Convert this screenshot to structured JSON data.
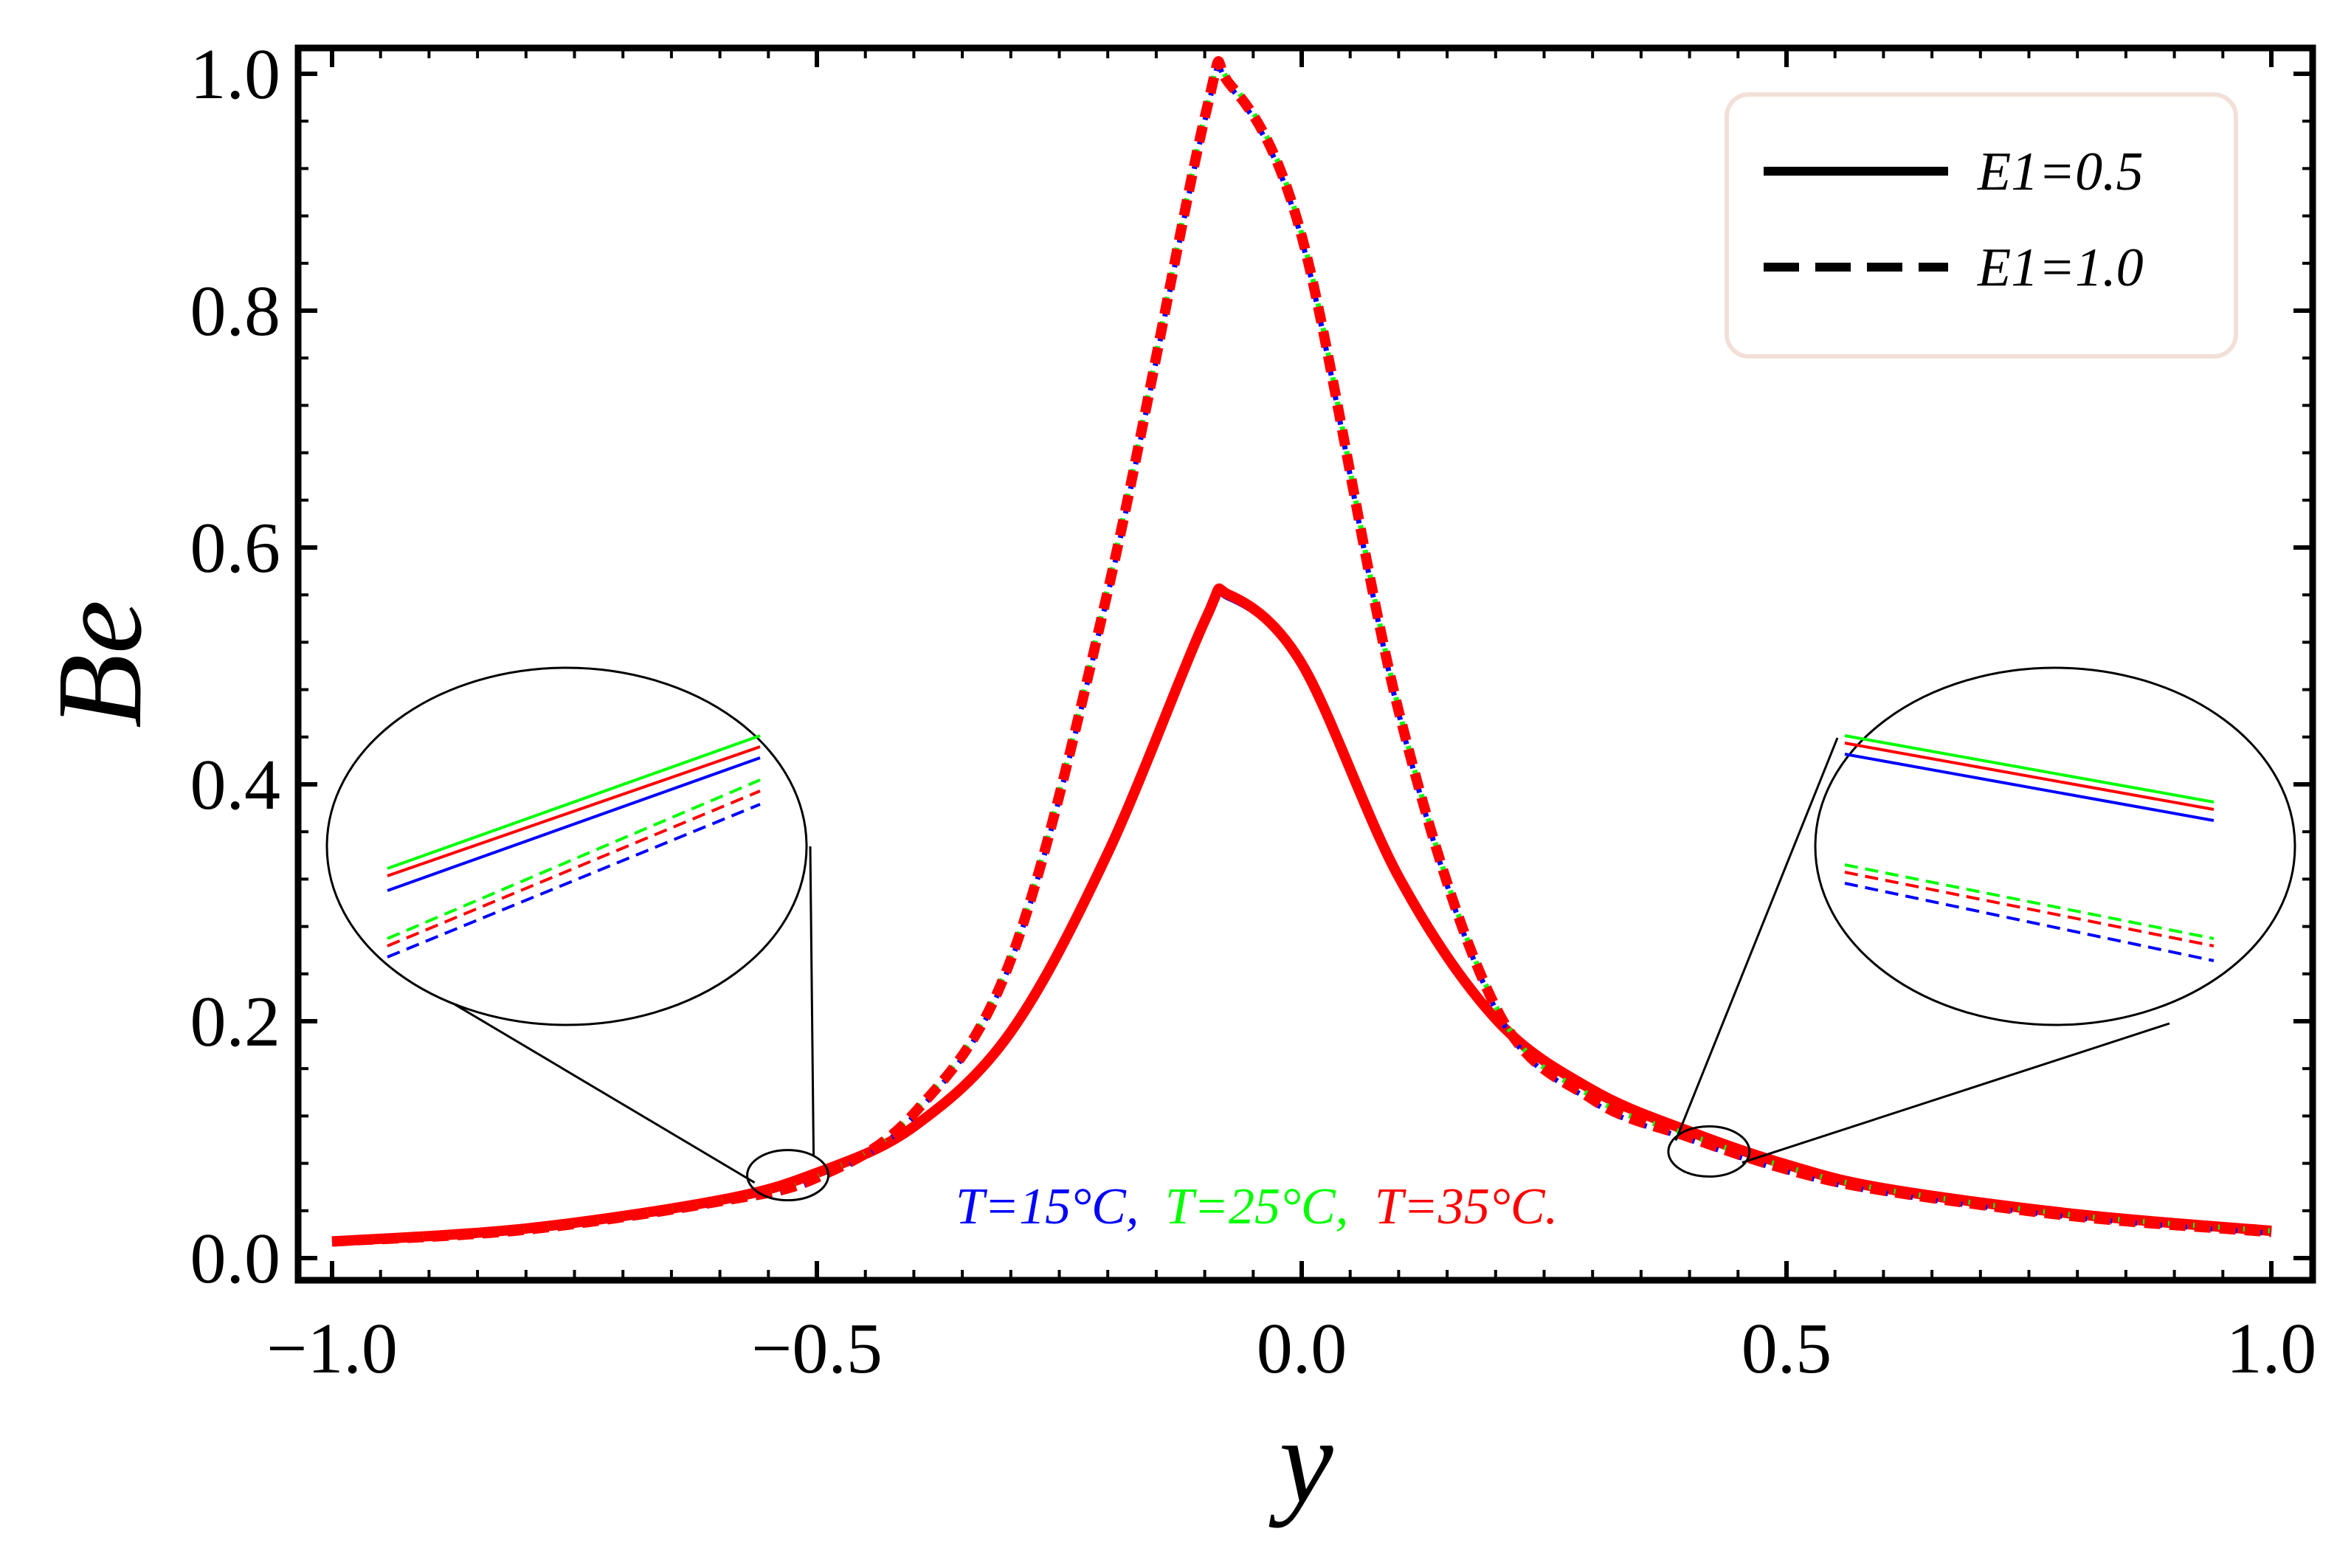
{
  "chart_data": {
    "type": "line",
    "title": "",
    "xlabel": "y",
    "ylabel": "Be",
    "xlim": [
      -1.0,
      1.0
    ],
    "ylim": [
      0.0,
      1.0
    ],
    "xticks": [
      "−1.0",
      "−0.5",
      "0.0",
      "0.5",
      "1.0"
    ],
    "yticks": [
      "0.0",
      "0.2",
      "0.4",
      "0.6",
      "0.8",
      "1.0"
    ],
    "x": [
      -1.0,
      -0.8,
      -0.6,
      -0.5,
      -0.4,
      -0.3,
      -0.2,
      -0.1,
      -0.075,
      0.0,
      0.1,
      0.2,
      0.3,
      0.4,
      0.5,
      0.6,
      0.8,
      1.0
    ],
    "series": [
      {
        "name": "E1=0.5, T=15°C",
        "E1": 0.5,
        "T": 15,
        "color": "#0000ff",
        "dash": "solid",
        "values": [
          0.013,
          0.024,
          0.048,
          0.071,
          0.11,
          0.19,
          0.34,
          0.535,
          0.557,
          0.5,
          0.32,
          0.2,
          0.14,
          0.105,
          0.077,
          0.058,
          0.036,
          0.022
        ]
      },
      {
        "name": "E1=0.5, T=25°C",
        "E1": 0.5,
        "T": 25,
        "color": "#00ff00",
        "dash": "solid",
        "values": [
          0.015,
          0.026,
          0.05,
          0.073,
          0.112,
          0.192,
          0.343,
          0.54,
          0.562,
          0.504,
          0.323,
          0.203,
          0.143,
          0.108,
          0.08,
          0.06,
          0.038,
          0.024
        ]
      },
      {
        "name": "E1=0.5, T=35°C",
        "E1": 0.5,
        "T": 35,
        "color": "#ff0000",
        "dash": "solid",
        "values": [
          0.014,
          0.025,
          0.049,
          0.072,
          0.111,
          0.191,
          0.342,
          0.538,
          0.56,
          0.502,
          0.322,
          0.202,
          0.142,
          0.107,
          0.079,
          0.059,
          0.037,
          0.023
        ]
      },
      {
        "name": "E1=1.0, T=15°C",
        "E1": 1.0,
        "T": 15,
        "color": "#0000ff",
        "dash": "dashed",
        "values": [
          0.013,
          0.023,
          0.046,
          0.066,
          0.12,
          0.25,
          0.56,
          0.96,
          0.99,
          0.86,
          0.46,
          0.21,
          0.132,
          0.1,
          0.073,
          0.055,
          0.034,
          0.021
        ]
      },
      {
        "name": "E1=1.0, T=25°C",
        "E1": 1.0,
        "T": 25,
        "color": "#00ff00",
        "dash": "dashed",
        "values": [
          0.015,
          0.025,
          0.049,
          0.069,
          0.123,
          0.254,
          0.566,
          0.965,
          0.994,
          0.865,
          0.464,
          0.213,
          0.136,
          0.104,
          0.077,
          0.058,
          0.036,
          0.023
        ]
      },
      {
        "name": "E1=1.0, T=35°C",
        "E1": 1.0,
        "T": 35,
        "color": "#ff0000",
        "dash": "dashed",
        "values": [
          0.014,
          0.024,
          0.048,
          0.068,
          0.122,
          0.252,
          0.563,
          0.963,
          0.992,
          0.863,
          0.462,
          0.212,
          0.134,
          0.102,
          0.075,
          0.057,
          0.035,
          0.022
        ]
      }
    ],
    "legend": {
      "placement": "top-right",
      "entries": [
        {
          "label": "E1=0.5",
          "dash": "solid"
        },
        {
          "label": "E1=1.0",
          "dash": "dashed"
        }
      ]
    },
    "annotation": {
      "parts": [
        {
          "text": "T=15°C,",
          "color": "#0000ff"
        },
        {
          "text": "T=25°C,",
          "color": "#00ff00"
        },
        {
          "text": "T=35°C.",
          "color": "#ff0000"
        }
      ]
    },
    "zoom_insets": [
      {
        "side": "left",
        "center": [
          -0.53,
          0.07
        ]
      },
      {
        "side": "right",
        "center": [
          0.42,
          0.09
        ]
      }
    ]
  }
}
